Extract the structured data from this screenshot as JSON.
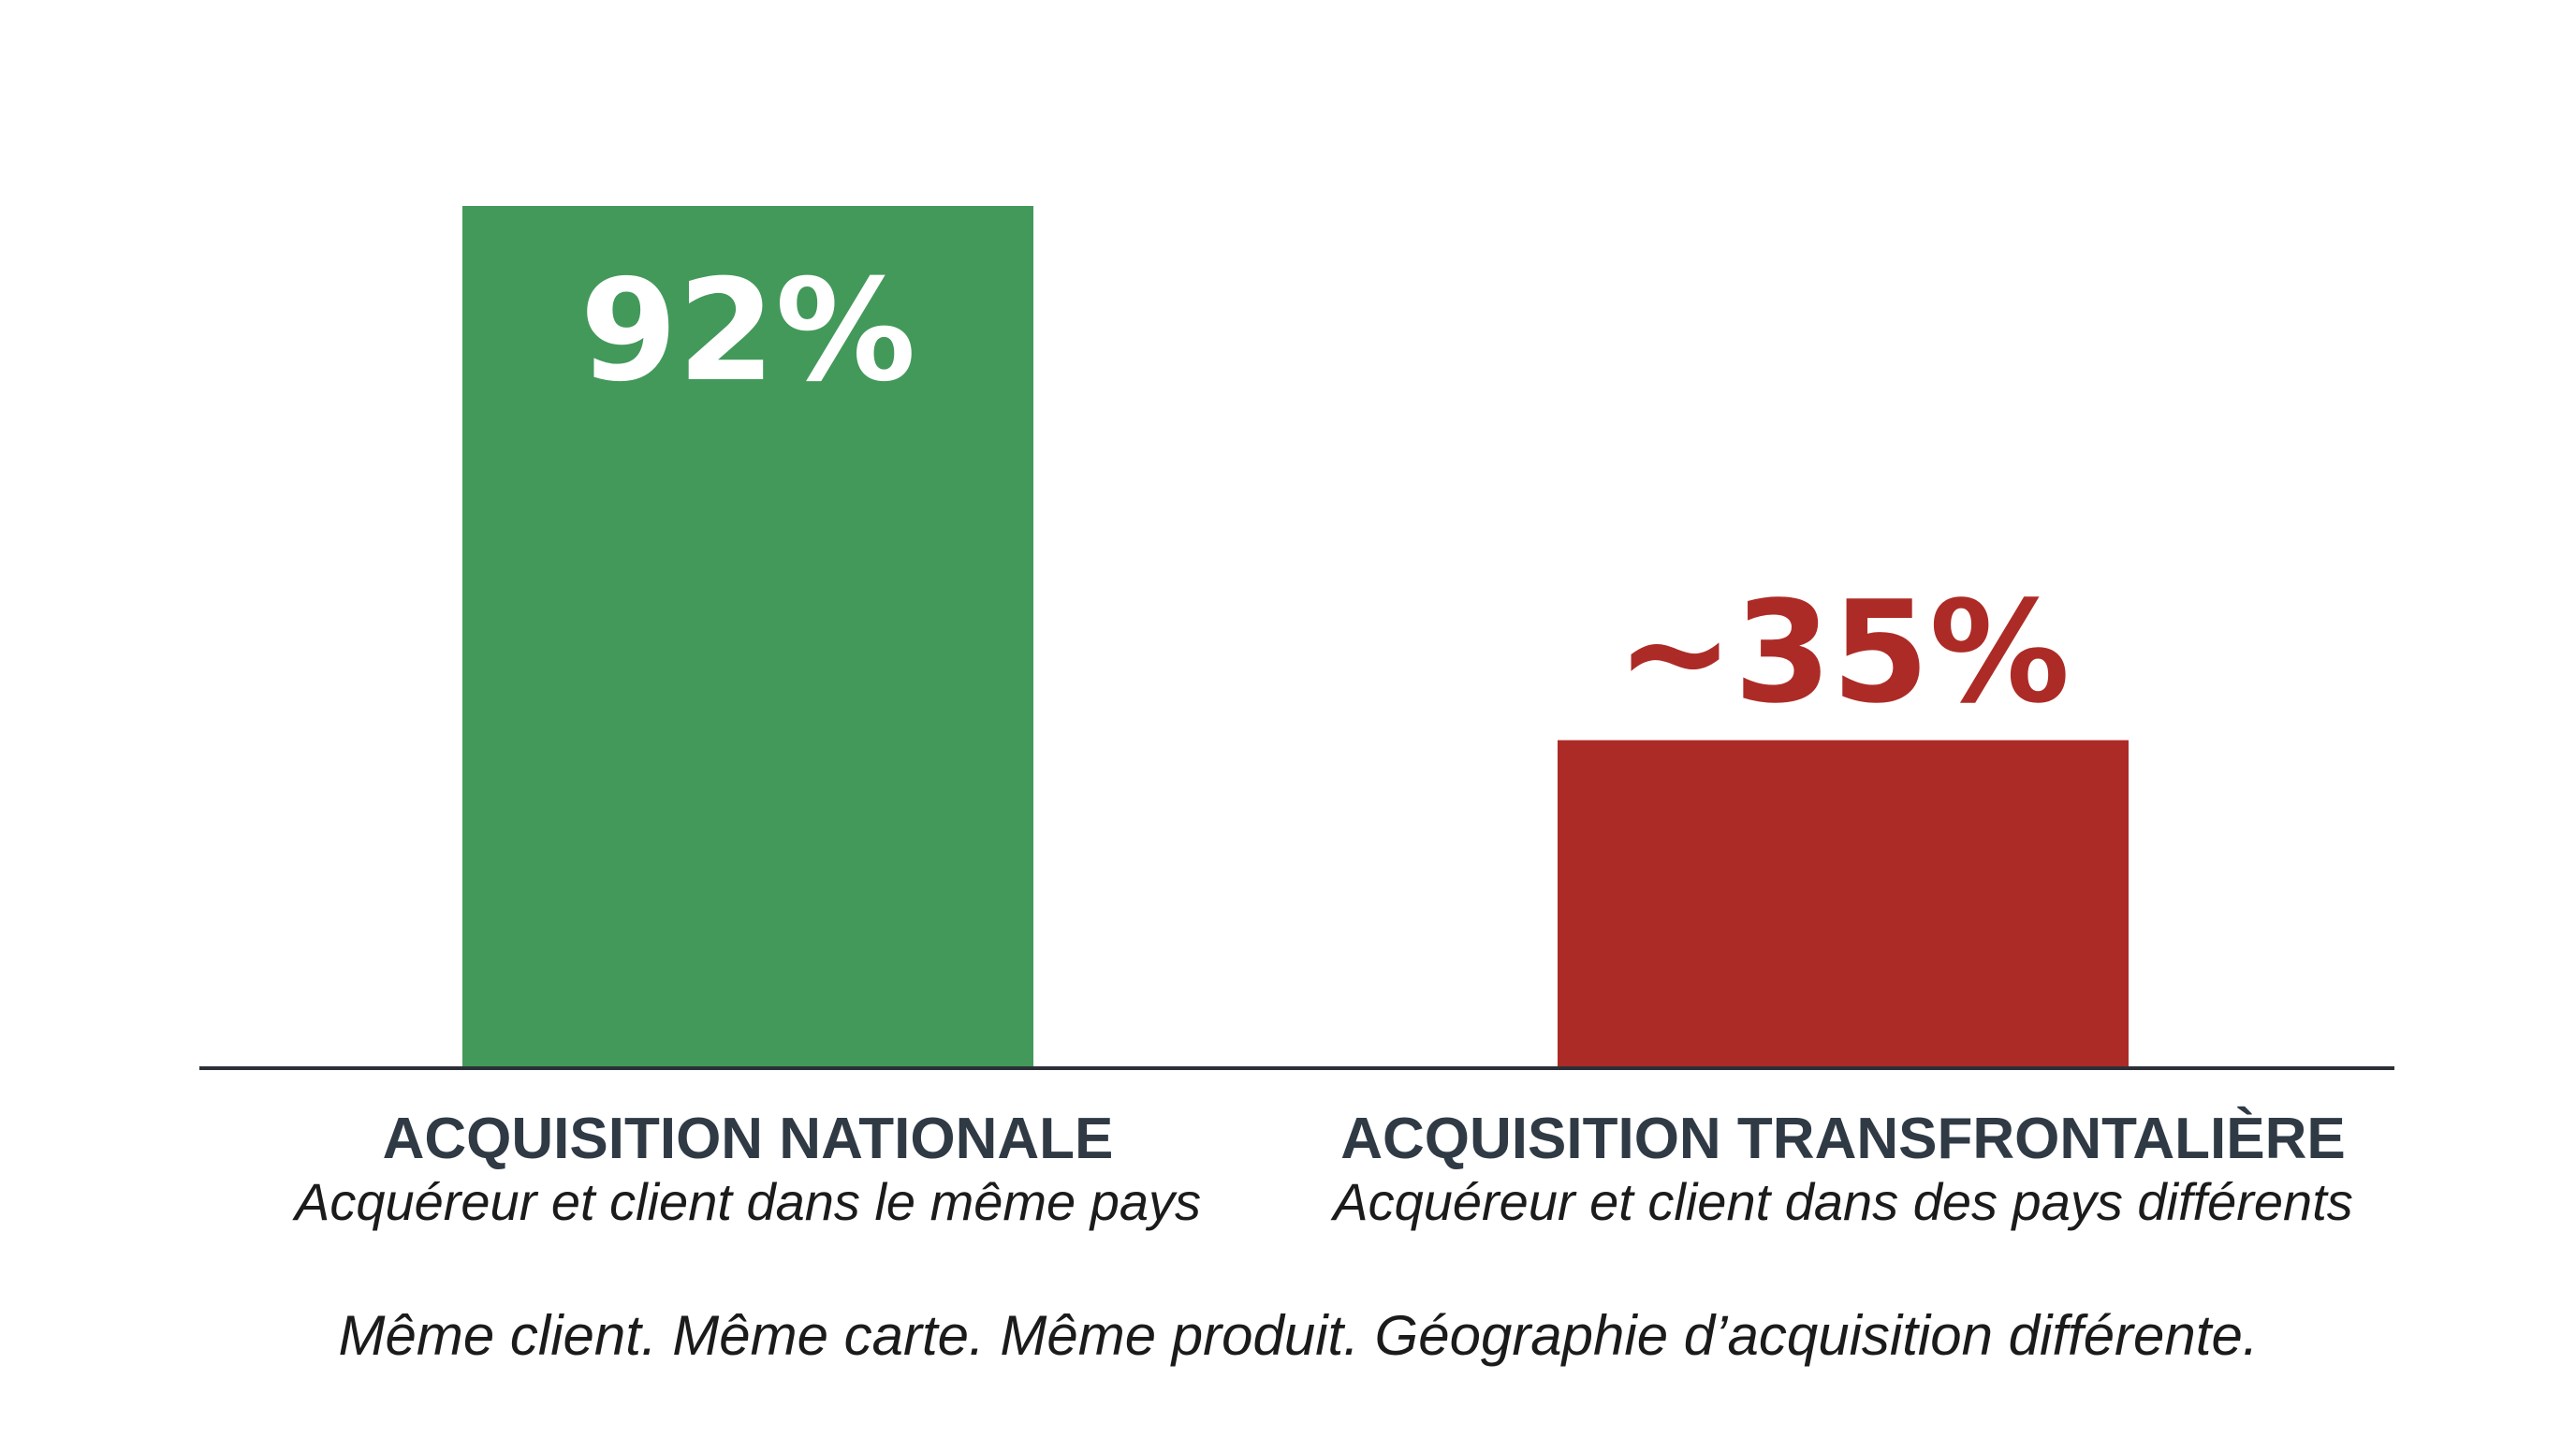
{
  "chart_data": {
    "type": "bar",
    "categories": [
      "ACQUISITION NATIONALE",
      "ACQUISITION TRANSFRONTALIÈRE"
    ],
    "subtitles": [
      "Acquéreur et client dans le même pays",
      "Acquéreur et client dans des pays différents"
    ],
    "values": [
      92,
      35
    ],
    "value_labels": [
      "92%",
      "~35%"
    ],
    "colors": [
      "#43995a",
      "#ad2b26"
    ],
    "label_colors": [
      "#ffffff",
      "#ad2b26"
    ],
    "ylim": [
      0,
      92
    ],
    "grid": false,
    "legend": "none",
    "footnote": "Même client. Même carte. Même produit. Géographie d’acquisition différente."
  }
}
